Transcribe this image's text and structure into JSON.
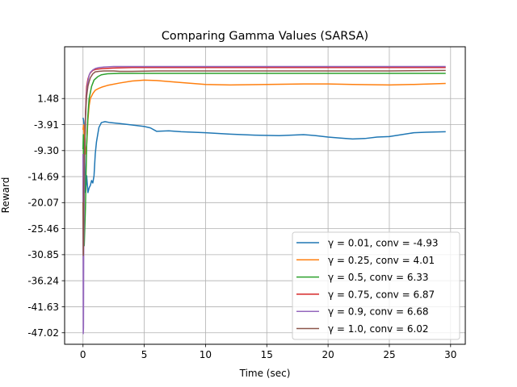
{
  "chart_data": {
    "type": "line",
    "title": "Comparing Gamma Values (SARSA)",
    "xlabel": "Time (sec)",
    "ylabel": "Reward",
    "xlim": [
      -1.5,
      31.2
    ],
    "ylim": [
      -49.4,
      12.2
    ],
    "xticks": [
      "0",
      "5",
      "10",
      "15",
      "20",
      "25",
      "30"
    ],
    "xtick_values": [
      0,
      5,
      10,
      15,
      20,
      25,
      30
    ],
    "yticks": [
      "1.48",
      "-3.91",
      "-9.30",
      "-14.69",
      "-20.07",
      "-25.46",
      "-30.85",
      "-36.24",
      "-41.63",
      "-47.02"
    ],
    "ytick_values": [
      1.48,
      -3.91,
      -9.3,
      -14.69,
      -20.07,
      -25.46,
      -30.85,
      -36.24,
      -41.63,
      -47.02
    ],
    "grid": true,
    "legend_position": "lower-right",
    "series": [
      {
        "name": "γ = 0.01, conv = -4.93",
        "color": "#1f77b4",
        "x": [
          0,
          0.05,
          0.1,
          0.15,
          0.2,
          0.3,
          0.4,
          0.5,
          0.6,
          0.7,
          0.8,
          0.9,
          1.0,
          1.1,
          1.2,
          1.3,
          1.5,
          1.8,
          2.2,
          3,
          4,
          5,
          5.5,
          6,
          7,
          8,
          10,
          12,
          14,
          16,
          18,
          19,
          20,
          21,
          22,
          23,
          24,
          25,
          26,
          27,
          28,
          29.6
        ],
        "y": [
          -2.5,
          -3.0,
          -4.5,
          -12,
          -18,
          -14.5,
          -18,
          -17,
          -16.5,
          -15.5,
          -16,
          -14.5,
          -10,
          -7.5,
          -6,
          -4.5,
          -3.5,
          -3.3,
          -3.5,
          -3.7,
          -4.0,
          -4.3,
          -4.6,
          -5.3,
          -5.2,
          -5.4,
          -5.6,
          -5.9,
          -6.1,
          -6.2,
          -6.0,
          -6.2,
          -6.5,
          -6.7,
          -6.9,
          -6.8,
          -6.5,
          -6.4,
          -6.0,
          -5.6,
          -5.5,
          -5.4
        ]
      },
      {
        "name": "γ = 0.25, conv = 4.01",
        "color": "#ff7f0e",
        "x": [
          0,
          0.05,
          0.1,
          0.2,
          0.3,
          0.4,
          0.5,
          0.6,
          0.8,
          1.0,
          1.3,
          1.6,
          2,
          3,
          4,
          5,
          6,
          8,
          10,
          12,
          15,
          18,
          20,
          22,
          25,
          27,
          29.6
        ],
        "y": [
          -5,
          -4,
          -7,
          -10,
          -8,
          -3,
          0,
          1.5,
          2.5,
          3.2,
          3.6,
          3.9,
          4.2,
          4.7,
          5.1,
          5.3,
          5.2,
          4.8,
          4.4,
          4.3,
          4.4,
          4.5,
          4.5,
          4.4,
          4.3,
          4.4,
          4.6
        ]
      },
      {
        "name": "γ = 0.5, conv = 6.33",
        "color": "#2ca02c",
        "x": [
          0,
          0.03,
          0.06,
          0.1,
          0.15,
          0.2,
          0.25,
          0.3,
          0.4,
          0.5,
          0.7,
          0.9,
          1.2,
          1.5,
          2,
          3,
          5,
          10,
          15,
          20,
          25,
          29.6
        ],
        "y": [
          -9,
          -6,
          -25,
          -29,
          -25,
          -21,
          -14,
          -8,
          -2,
          1.5,
          4.0,
          5.3,
          6.0,
          6.4,
          6.6,
          6.7,
          6.7,
          6.7,
          6.7,
          6.7,
          6.7,
          6.7
        ]
      },
      {
        "name": "γ = 0.75, conv = 6.87",
        "color": "#d62728",
        "x": [
          0,
          0.03,
          0.06,
          0.1,
          0.15,
          0.2,
          0.25,
          0.3,
          0.4,
          0.5,
          0.6,
          0.8,
          1.0,
          1.3,
          1.7,
          2.5,
          4,
          6,
          10,
          15,
          20,
          25,
          29.6
        ],
        "y": [
          -15,
          -32,
          -22,
          -12,
          -8,
          -2,
          2,
          4,
          5.5,
          6.3,
          6.8,
          7.3,
          7.5,
          7.6,
          7.7,
          7.8,
          7.9,
          7.9,
          7.9,
          7.9,
          7.9,
          7.9,
          7.9
        ]
      },
      {
        "name": "γ = 0.9, conv = 6.68",
        "color": "#9467bd",
        "x": [
          0,
          0.02,
          0.04,
          0.06,
          0.08,
          0.1,
          0.15,
          0.2,
          0.25,
          0.3,
          0.4,
          0.5,
          0.6,
          0.8,
          1.0,
          1.3,
          1.7,
          2.5,
          4,
          6,
          10,
          15,
          20,
          25,
          29.6
        ],
        "y": [
          -10,
          -47.2,
          -46,
          -28,
          -25,
          -18,
          -8,
          -2,
          1,
          3,
          5,
          6.3,
          6.9,
          7.4,
          7.7,
          7.9,
          8.0,
          8.1,
          8.1,
          8.1,
          8.1,
          8.1,
          8.1,
          8.1,
          8.1
        ]
      },
      {
        "name": "γ = 1.0, conv = 6.02",
        "color": "#8c564b",
        "x": [
          0,
          0.03,
          0.06,
          0.1,
          0.15,
          0.2,
          0.25,
          0.3,
          0.4,
          0.5,
          0.6,
          0.8,
          1.0,
          1.3,
          1.7,
          2.5,
          3,
          4,
          6,
          10,
          15,
          20,
          25,
          29.6
        ],
        "y": [
          -20,
          -31,
          -17,
          -12,
          -8,
          -3,
          0,
          2,
          4,
          5,
          5.8,
          6.6,
          7.0,
          7.1,
          7.2,
          7.2,
          7.1,
          7.1,
          7.2,
          7.2,
          7.2,
          7.2,
          7.2,
          7.3
        ]
      }
    ]
  }
}
